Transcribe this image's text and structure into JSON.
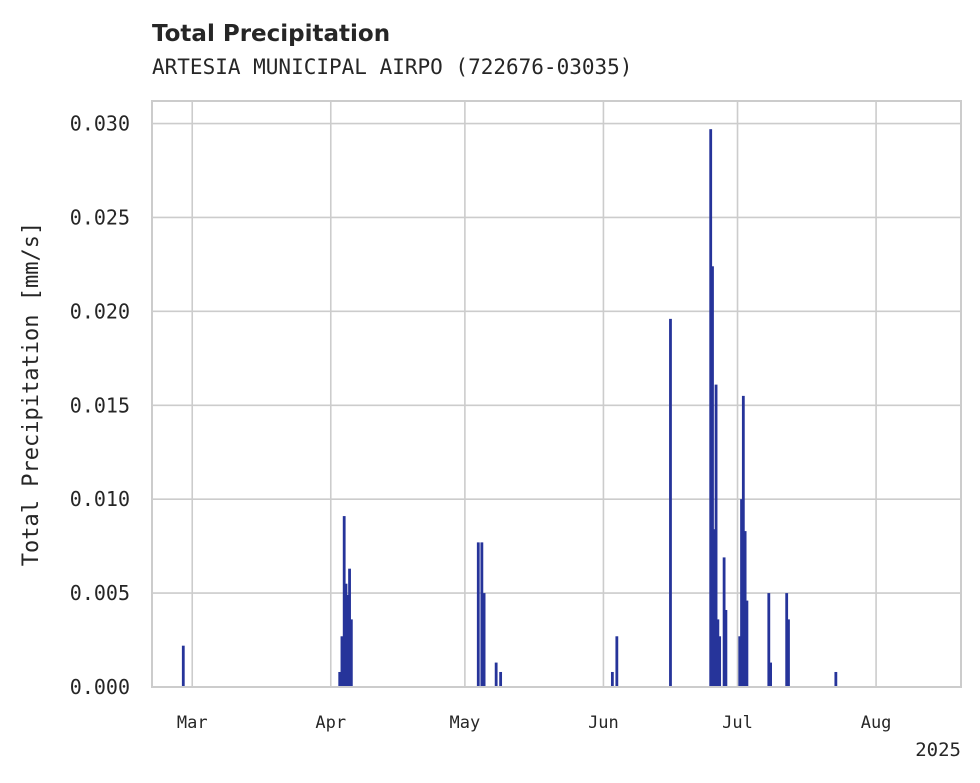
{
  "chart_data": {
    "type": "bar",
    "title": "Total Precipitation",
    "subtitle": "ARTESIA MUNICIPAL AIRPO (722676-03035)",
    "xlabel": "",
    "ylabel": "Total Precipitation [mm/s]",
    "xlim": [
      "2025-02-20",
      "2025-08-20"
    ],
    "ylim": [
      0,
      0.0312
    ],
    "x_offset_label": "2025",
    "grid": true,
    "xticks": [
      {
        "date": "2025-03-01",
        "label": "Mar"
      },
      {
        "date": "2025-04-01",
        "label": "Apr"
      },
      {
        "date": "2025-05-01",
        "label": "May"
      },
      {
        "date": "2025-06-01",
        "label": "Jun"
      },
      {
        "date": "2025-07-01",
        "label": "Jul"
      },
      {
        "date": "2025-08-01",
        "label": "Aug"
      }
    ],
    "yticks": [
      {
        "value": 0.0,
        "label": "0.000"
      },
      {
        "value": 0.005,
        "label": "0.005"
      },
      {
        "value": 0.01,
        "label": "0.010"
      },
      {
        "value": 0.015,
        "label": "0.015"
      },
      {
        "value": 0.02,
        "label": "0.020"
      },
      {
        "value": 0.025,
        "label": "0.025"
      },
      {
        "value": 0.03,
        "label": "0.030"
      }
    ],
    "series": [
      {
        "name": "Total Precipitation",
        "color": "#26349a",
        "points": [
          {
            "date": "2025-02-27",
            "value": 0.0022
          },
          {
            "date": "2025-04-03",
            "value": 0.0008
          },
          {
            "date": "2025-04-03.5",
            "value": 0.0027
          },
          {
            "date": "2025-04-04",
            "value": 0.0091
          },
          {
            "date": "2025-04-04.4",
            "value": 0.0055
          },
          {
            "date": "2025-04-04.8",
            "value": 0.0049
          },
          {
            "date": "2025-04-05.2",
            "value": 0.0063
          },
          {
            "date": "2025-04-05.6",
            "value": 0.0036
          },
          {
            "date": "2025-05-04",
            "value": 0.0077
          },
          {
            "date": "2025-05-04.8",
            "value": 0.0077
          },
          {
            "date": "2025-05-05.3",
            "value": 0.005
          },
          {
            "date": "2025-05-08",
            "value": 0.0013
          },
          {
            "date": "2025-05-09",
            "value": 0.0008
          },
          {
            "date": "2025-06-03",
            "value": 0.0008
          },
          {
            "date": "2025-06-04",
            "value": 0.0027
          },
          {
            "date": "2025-06-16",
            "value": 0.0196
          },
          {
            "date": "2025-06-25",
            "value": 0.0297
          },
          {
            "date": "2025-06-25.4",
            "value": 0.0224
          },
          {
            "date": "2025-06-25.8",
            "value": 0.0084
          },
          {
            "date": "2025-06-26.2",
            "value": 0.0161
          },
          {
            "date": "2025-06-26.6",
            "value": 0.0036
          },
          {
            "date": "2025-06-27",
            "value": 0.0027
          },
          {
            "date": "2025-06-28",
            "value": 0.0069
          },
          {
            "date": "2025-06-28.4",
            "value": 0.0041
          },
          {
            "date": "2025-07-01.5",
            "value": 0.0027
          },
          {
            "date": "2025-07-01.9",
            "value": 0.01
          },
          {
            "date": "2025-07-02.3",
            "value": 0.0155
          },
          {
            "date": "2025-07-02.7",
            "value": 0.0083
          },
          {
            "date": "2025-07-03.1",
            "value": 0.0046
          },
          {
            "date": "2025-07-08",
            "value": 0.005
          },
          {
            "date": "2025-07-08.4",
            "value": 0.0013
          },
          {
            "date": "2025-07-12",
            "value": 0.005
          },
          {
            "date": "2025-07-12.4",
            "value": 0.0036
          },
          {
            "date": "2025-07-23",
            "value": 0.0008
          }
        ]
      }
    ]
  }
}
